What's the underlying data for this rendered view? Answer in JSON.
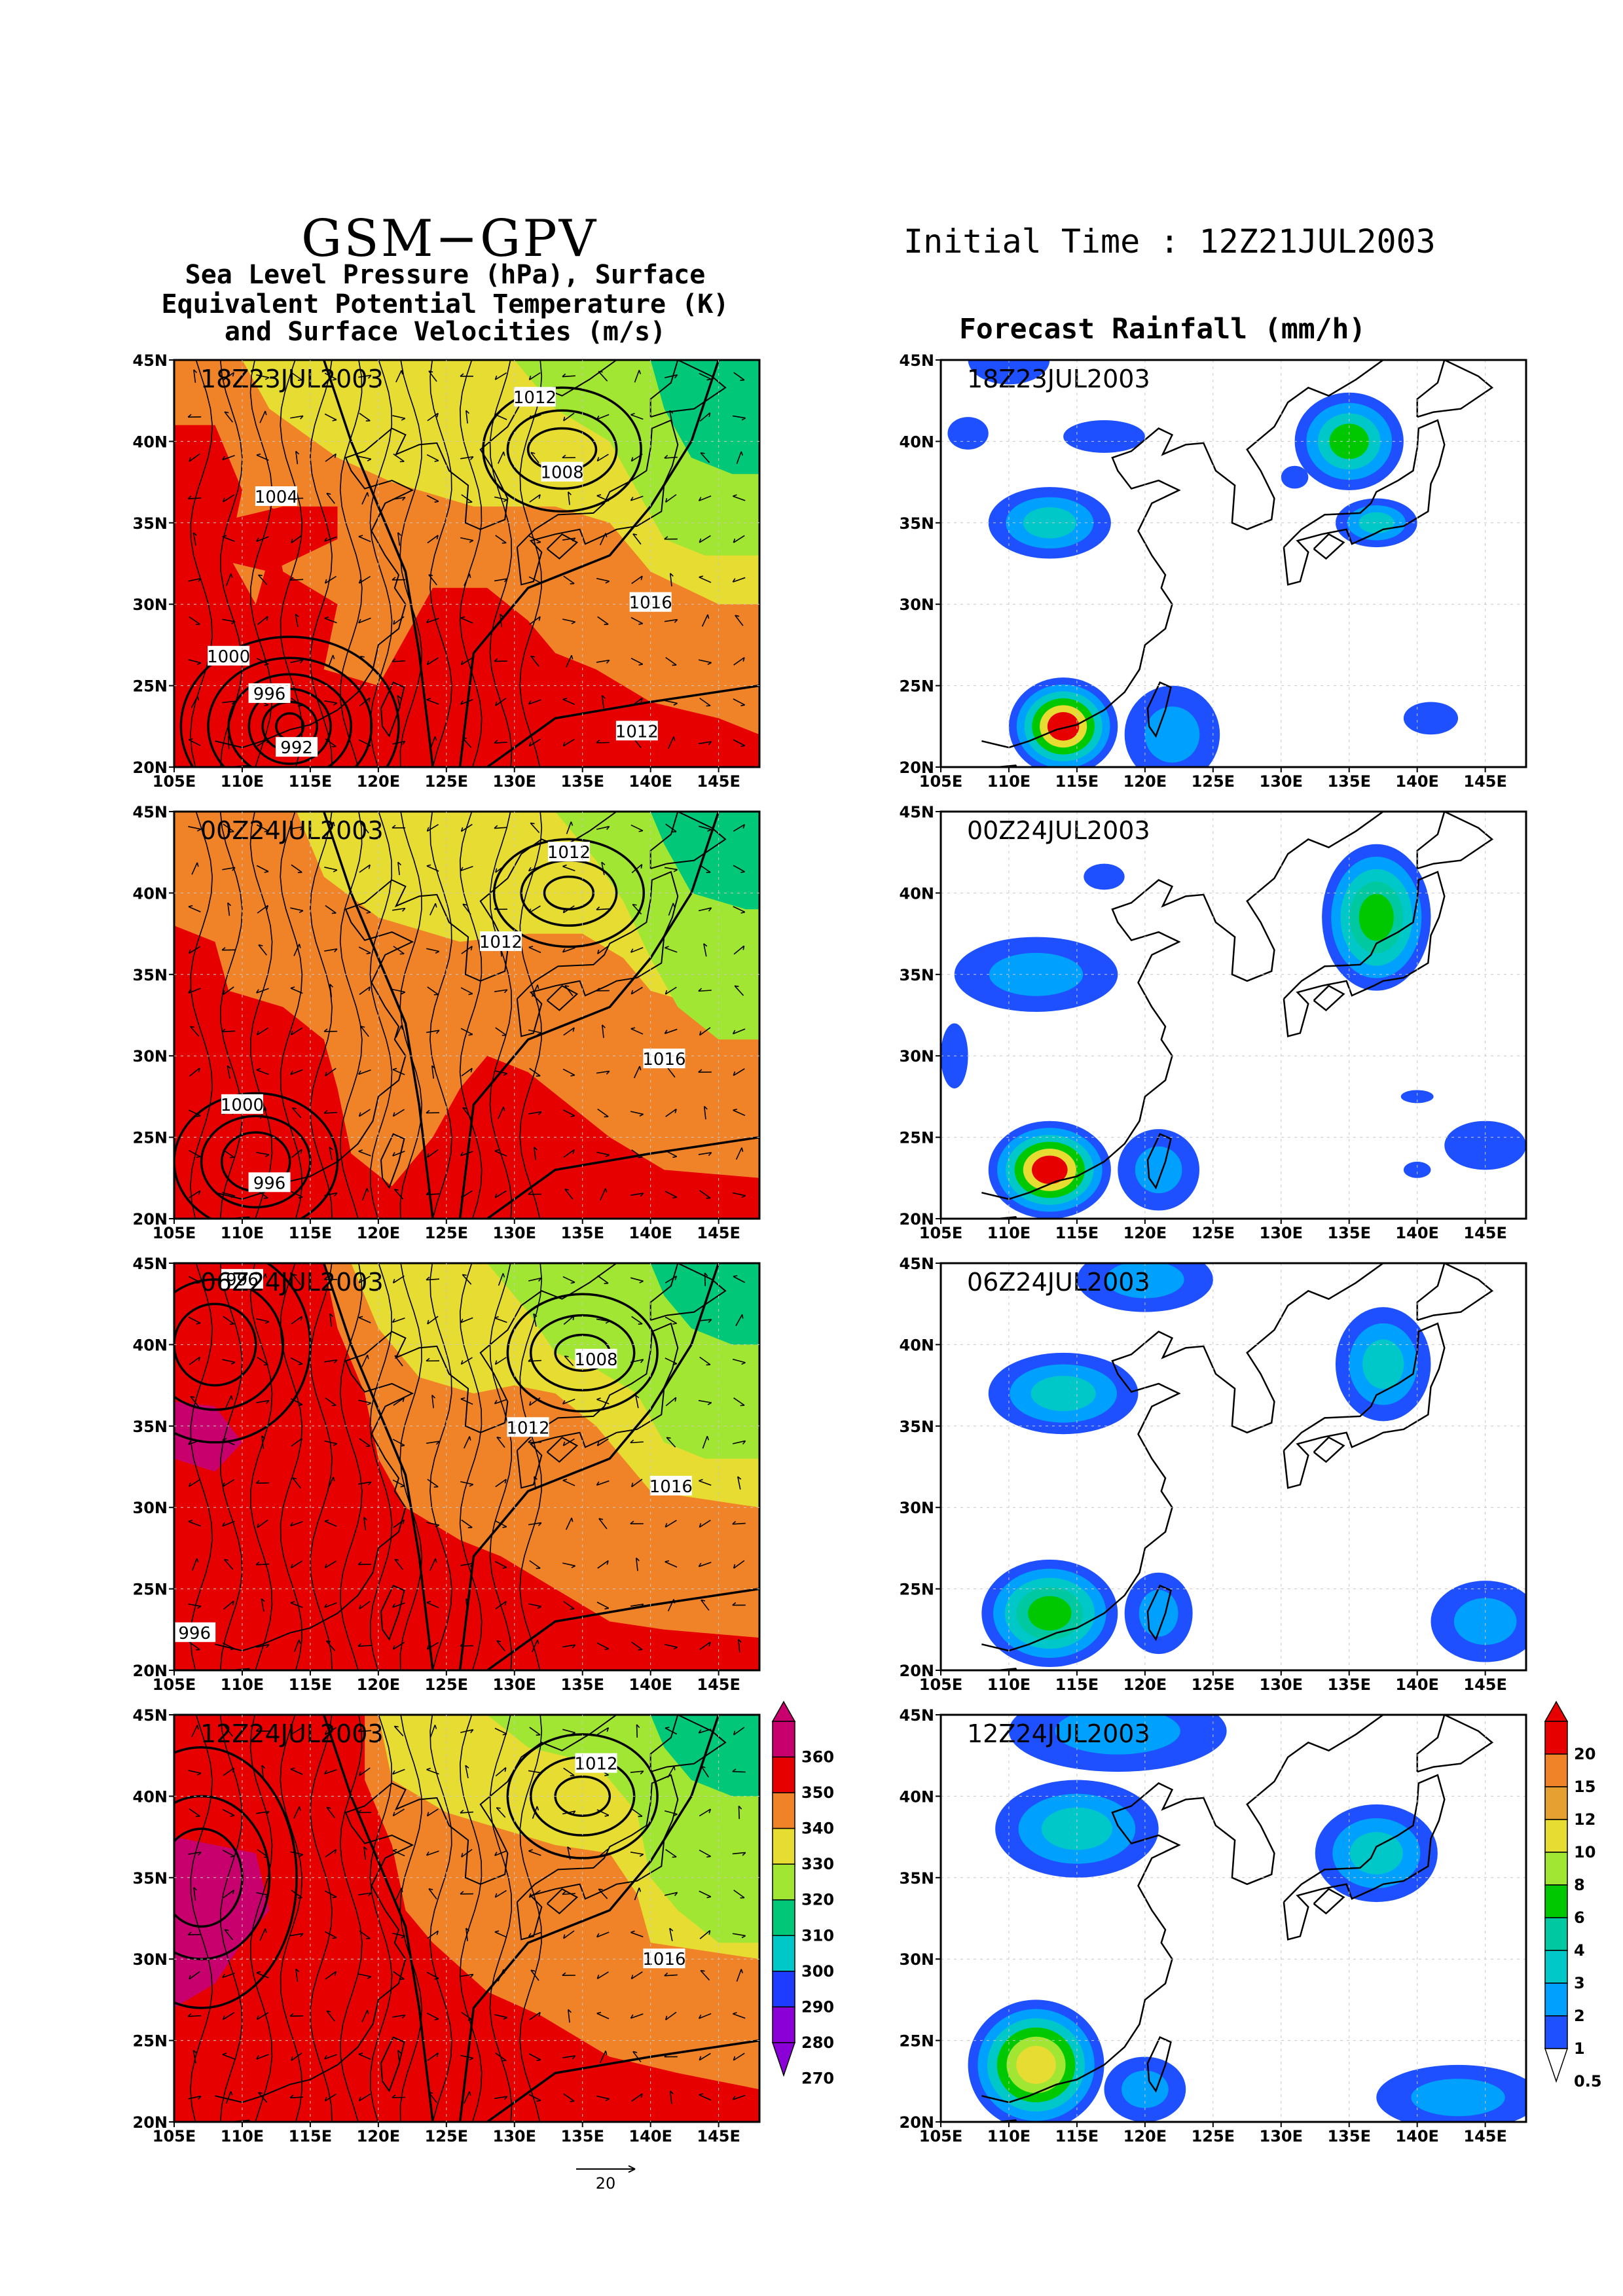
{
  "header": {
    "model": "GSM−GPV",
    "subtitle": [
      "Sea Level Pressure (hPa), Surface",
      "Equivalent Potential Temperature (K)",
      "and Surface Velocities (m/s)"
    ],
    "initial_time": "Initial Time : 12Z21JUL2003",
    "rain_title": "Forecast Rainfall (mm/h)"
  },
  "axes": {
    "lon_ticks": [
      "105E",
      "110E",
      "115E",
      "120E",
      "125E",
      "130E",
      "135E",
      "140E",
      "145E"
    ],
    "lat_ticks": [
      "20N",
      "25N",
      "30N",
      "35N",
      "40N",
      "45N"
    ]
  },
  "panels": [
    {
      "time": "18Z23JUL2003",
      "isobar_labels": [
        {
          "text": "1012",
          "lon": 131.5,
          "lat": 42.7
        },
        {
          "text": "1008",
          "lon": 133.5,
          "lat": 38.1
        },
        {
          "text": "1004",
          "lon": 112.5,
          "lat": 36.6
        },
        {
          "text": "1016",
          "lon": 140.0,
          "lat": 30.1
        },
        {
          "text": "1000",
          "lon": 109.0,
          "lat": 26.8
        },
        {
          "text": "996",
          "lon": 112.0,
          "lat": 24.5
        },
        {
          "text": "992",
          "lon": 114.0,
          "lat": 21.2
        },
        {
          "text": "1012",
          "lon": 139.0,
          "lat": 22.2
        }
      ]
    },
    {
      "time": "00Z24JUL2003",
      "isobar_labels": [
        {
          "text": "1012",
          "lon": 134.0,
          "lat": 42.5
        },
        {
          "text": "1012",
          "lon": 129.0,
          "lat": 37.0
        },
        {
          "text": "1016",
          "lon": 141.0,
          "lat": 29.8
        },
        {
          "text": "1000",
          "lon": 110.0,
          "lat": 27.0
        },
        {
          "text": "996",
          "lon": 112.0,
          "lat": 22.2
        }
      ]
    },
    {
      "time": "06Z24JUL2003",
      "isobar_labels": [
        {
          "text": "996",
          "lon": 110.0,
          "lat": 44.0
        },
        {
          "text": "1008",
          "lon": 136.0,
          "lat": 39.1
        },
        {
          "text": "1012",
          "lon": 131.0,
          "lat": 34.9
        },
        {
          "text": "1016",
          "lon": 141.5,
          "lat": 31.3
        },
        {
          "text": "996",
          "lon": 106.5,
          "lat": 22.3
        }
      ]
    },
    {
      "time": "12Z24JUL2003",
      "isobar_labels": [
        {
          "text": "1012",
          "lon": 136.0,
          "lat": 42.0
        },
        {
          "text": "1016",
          "lon": 141.0,
          "lat": 30.0
        }
      ]
    }
  ],
  "theta_e_colorbar": {
    "labels": [
      "360",
      "350",
      "340",
      "330",
      "320",
      "310",
      "300",
      "290",
      "280",
      "270"
    ],
    "colors": [
      "#c8006e",
      "#e60000",
      "#f08228",
      "#e6dc32",
      "#a0e632",
      "#00c878",
      "#00c8c8",
      "#1e3cff",
      "#8c00d8",
      "#8c00d8"
    ]
  },
  "rain_colorbar": {
    "labels": [
      "20",
      "15",
      "12",
      "10",
      "8",
      "6",
      "4",
      "3",
      "2",
      "1",
      "0.5"
    ],
    "colors": [
      "#e60000",
      "#f08228",
      "#e6a032",
      "#e6dc32",
      "#a0e632",
      "#00c800",
      "#00c8a0",
      "#00c8c8",
      "#00a0ff",
      "#1e50ff",
      "#ffffff"
    ]
  },
  "vector_reference": {
    "label": "20"
  }
}
